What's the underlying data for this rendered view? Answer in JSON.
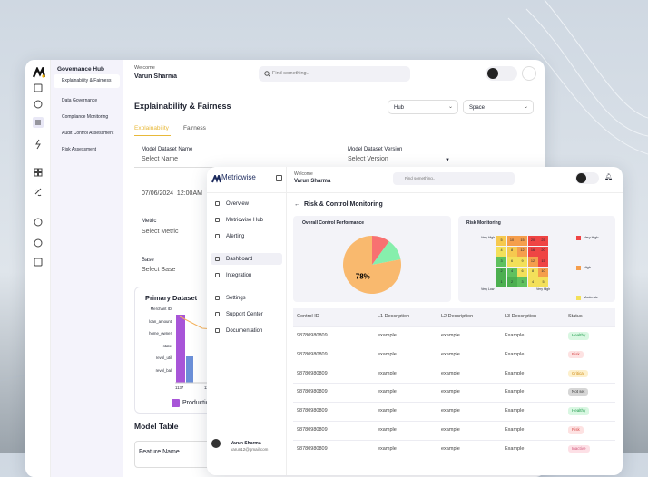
{
  "back_window": {
    "sidebar": {
      "title": "Governance Hub",
      "items": [
        "Explainability & Fairness",
        "Data Governance",
        "Compliance Monitoring",
        "Audit Control Assessment",
        "Risk Assessment"
      ]
    },
    "header": {
      "welcome": "Welcome",
      "user": "Varun Sharma",
      "search_placeholder": "Find something.."
    },
    "page_title": "Explainability & Fairness",
    "filters": [
      "Hub",
      "Space"
    ],
    "tabs": [
      "Explainability",
      "Fairness"
    ],
    "form": {
      "dataset_name_label": "Model Dataset Name",
      "dataset_name_placeholder": "Select Name",
      "dataset_version_label": "Model Dataset Version",
      "dataset_version_placeholder": "Select Version",
      "date": "07/06/2024  12:00AM",
      "metric_label": "Metric",
      "metric_placeholder": "Select Metric",
      "base_label": "Base",
      "base_placeholder": "Select Base"
    },
    "primary_dataset": {
      "title": "Primary Dataset",
      "rows": [
        "Merchant ID",
        "loan_amount",
        "home_owner",
        "state",
        "revol_util",
        "revol_bal"
      ],
      "x_ticks": [
        "1137",
        "12"
      ],
      "legend": "Production"
    },
    "model_table": {
      "title": "Model Table",
      "column": "Feature Name"
    }
  },
  "front_window": {
    "logo": "Metricwise",
    "sidebar": {
      "items": [
        "Overview",
        "Metricwise Hub",
        "Alerting",
        "Dashboard",
        "Integration",
        "Settings",
        "Support Center",
        "Documentation"
      ],
      "selected": "Dashboard"
    },
    "user": {
      "name": "Varun Sharma",
      "email": "varun12@gmail.com"
    },
    "header": {
      "welcome": "Welcome",
      "user": "Varun Sharma",
      "search_placeholder": "Find something.."
    },
    "page_title": "Risk & Control Monitoring",
    "control_performance": {
      "title": "Overall Control Performance",
      "type": "pie",
      "slices": [
        {
          "color": "#f87171",
          "value": 10
        },
        {
          "color": "#86efac",
          "value": 12
        },
        {
          "color": "#f9b96e",
          "value": 78,
          "label": "78%"
        }
      ]
    },
    "risk_monitoring": {
      "title": "Risk Monitoring",
      "y_label": "Very High",
      "x_start_label": "Very Low",
      "x_end_label": "Very High",
      "cells": [
        [
          5,
          10,
          15,
          20,
          25
        ],
        [
          4,
          8,
          12,
          16,
          20
        ],
        [
          3,
          6,
          9,
          12,
          15
        ],
        [
          2,
          4,
          6,
          8,
          10
        ],
        [
          1,
          2,
          3,
          4,
          5
        ]
      ],
      "cell_colors": [
        [
          "#f6c94f",
          "#f59e4c",
          "#f59e4c",
          "#ef4444",
          "#ef4444"
        ],
        [
          "#f3e05a",
          "#f6c94f",
          "#f59e4c",
          "#ef4444",
          "#ef4444"
        ],
        [
          "#5fc15f",
          "#f3e05a",
          "#f3e05a",
          "#f59e4c",
          "#ef4444"
        ],
        [
          "#4caf50",
          "#5fc15f",
          "#f3e05a",
          "#f3e05a",
          "#f59e4c"
        ],
        [
          "#4caf50",
          "#4caf50",
          "#5fc15f",
          "#f3e05a",
          "#f3e05a"
        ]
      ],
      "legend": [
        {
          "label": "Very High",
          "color": "#ef4444"
        },
        {
          "label": "High",
          "color": "#f59e4c"
        },
        {
          "label": "Moderate",
          "color": "#f3e05a"
        }
      ]
    },
    "table": {
      "columns": [
        "Control ID",
        "L1 Description",
        "L2 Description",
        "L3 Description",
        "Status"
      ],
      "rows": [
        [
          "98780980809",
          "example",
          "example",
          "Example",
          "Healthy"
        ],
        [
          "98780980809",
          "example",
          "example",
          "Example",
          "Risk"
        ],
        [
          "98780980809",
          "example",
          "example",
          "Example",
          "Critical"
        ],
        [
          "98780980809",
          "example",
          "example",
          "Example",
          "Not set"
        ],
        [
          "98780980809",
          "example",
          "example",
          "Example",
          "Healthy"
        ],
        [
          "98780980809",
          "example",
          "example",
          "Example",
          "Risk"
        ],
        [
          "98780980809",
          "example",
          "example",
          "Example",
          "Inactive"
        ]
      ]
    }
  }
}
